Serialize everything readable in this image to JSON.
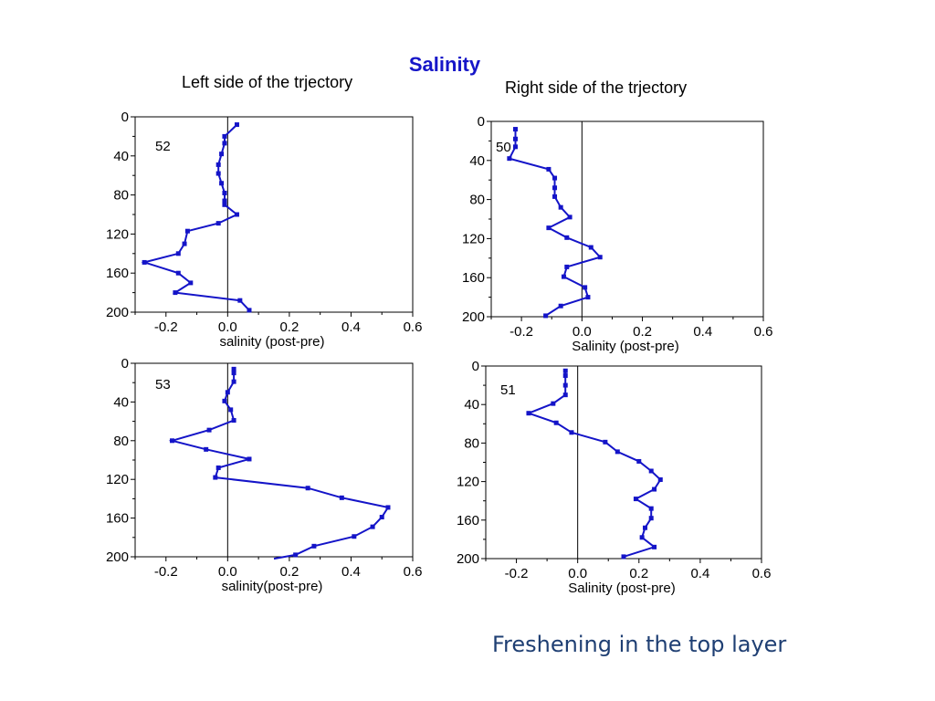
{
  "title": "Salinity",
  "left_heading": "Left side of the trjectory",
  "right_heading": "Right side of the trjectory",
  "footer_note": "Freshening in the top layer",
  "colors": {
    "series": "#1414c8",
    "title": "#1616c8",
    "footer": "#1f3f73"
  },
  "chart_data": [
    {
      "id": "52",
      "type": "line",
      "label": "52",
      "xlabel": "salinity (post-pre)",
      "ylabel": "",
      "xlim": [
        -0.3,
        0.6
      ],
      "ylim": [
        0,
        200
      ],
      "y_reversed": true,
      "xticks": [
        "-0.2",
        "0.0",
        "0.2",
        "0.4",
        "0.6"
      ],
      "yticks": [
        "0",
        "40",
        "80",
        "120",
        "160",
        "200"
      ],
      "series": [
        {
          "x": [
            0.03,
            -0.01,
            -0.01,
            -0.02,
            -0.03,
            -0.03,
            -0.02,
            -0.01,
            -0.01,
            -0.01,
            0.03,
            -0.03,
            -0.13,
            -0.14,
            -0.16,
            -0.27,
            -0.16,
            -0.12,
            -0.17,
            0.04,
            0.07
          ],
          "y": [
            8,
            20,
            27,
            38,
            49,
            58,
            68,
            78,
            86,
            90,
            100,
            109,
            117,
            130,
            140,
            149,
            160,
            170,
            180,
            188,
            198
          ]
        }
      ]
    },
    {
      "id": "50",
      "type": "line",
      "label": "50",
      "xlabel": "Salinity (post-pre)",
      "ylabel": "",
      "xlim": [
        -0.3,
        0.6
      ],
      "ylim": [
        0,
        200
      ],
      "y_reversed": true,
      "xticks": [
        "-0.2",
        "0.0",
        "0.2",
        "0.4",
        "0.6"
      ],
      "yticks": [
        "0",
        "40",
        "80",
        "120",
        "160",
        "200"
      ],
      "series": [
        {
          "x": [
            -0.22,
            -0.22,
            -0.22,
            -0.24,
            -0.11,
            -0.09,
            -0.09,
            -0.09,
            -0.07,
            -0.04,
            -0.11,
            -0.05,
            0.03,
            0.06,
            -0.05,
            -0.06,
            0.01,
            0.02,
            -0.07,
            -0.12
          ],
          "y": [
            8,
            18,
            26,
            38,
            49,
            58,
            68,
            77,
            88,
            98,
            109,
            119,
            129,
            139,
            149,
            159,
            170,
            180,
            189,
            199
          ]
        }
      ]
    },
    {
      "id": "53",
      "type": "line",
      "label": "53",
      "xlabel": "salinity(post-pre)",
      "ylabel": "",
      "xlim": [
        -0.3,
        0.6
      ],
      "ylim": [
        0,
        200
      ],
      "y_reversed": true,
      "xticks": [
        "-0.2",
        "0.0",
        "0.2",
        "0.4",
        "0.6"
      ],
      "yticks": [
        "0",
        "40",
        "80",
        "120",
        "160",
        "200"
      ],
      "series": [
        {
          "x": [
            0.02,
            0.02,
            0.02,
            0.0,
            -0.01,
            0.01,
            0.02,
            -0.06,
            -0.18,
            -0.07,
            0.07,
            -0.03,
            -0.04,
            0.26,
            0.37,
            0.52,
            0.5,
            0.47,
            0.41,
            0.28,
            0.22,
            0.15
          ],
          "y": [
            6,
            10,
            19,
            30,
            39,
            48,
            59,
            69,
            80,
            89,
            99,
            108,
            118,
            129,
            139,
            149,
            159,
            169,
            179,
            189,
            198,
            202
          ]
        }
      ]
    },
    {
      "id": "51",
      "type": "line",
      "label": "51",
      "xlabel": "Salinity (post-pre)",
      "ylabel": "",
      "xlim": [
        -0.3,
        0.6
      ],
      "ylim": [
        0,
        200
      ],
      "y_reversed": true,
      "xticks": [
        "-0.2",
        "0.0",
        "0.2",
        "0.4",
        "0.6"
      ],
      "yticks": [
        "0",
        "40",
        "80",
        "120",
        "160",
        "200"
      ],
      "series": [
        {
          "x": [
            -0.04,
            -0.04,
            -0.04,
            -0.04,
            -0.08,
            -0.16,
            -0.07,
            -0.02,
            0.09,
            0.13,
            0.2,
            0.24,
            0.27,
            0.25,
            0.19,
            0.24,
            0.24,
            0.22,
            0.21,
            0.25,
            0.15
          ],
          "y": [
            5,
            10,
            20,
            30,
            39,
            49,
            59,
            69,
            79,
            89,
            99,
            109,
            118,
            128,
            138,
            148,
            158,
            168,
            178,
            188,
            198
          ]
        }
      ]
    }
  ]
}
